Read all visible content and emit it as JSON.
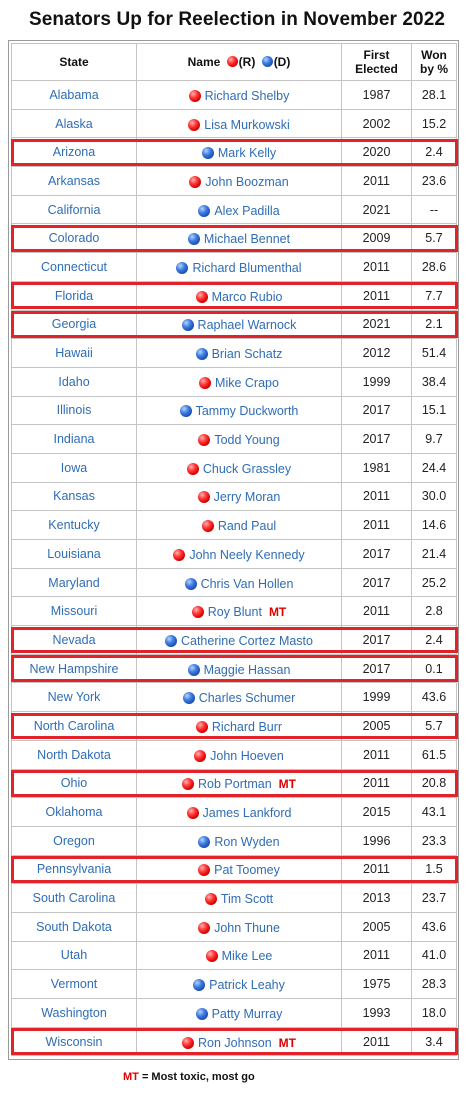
{
  "title": "Senators Up for Reelection in November 2022",
  "header": {
    "state": "State",
    "name": "Name",
    "rep_code": "(R)",
    "dem_code": "(D)",
    "first_line1": "First",
    "first_line2": "Elected",
    "won_line1": "Won",
    "won_line2": "by %"
  },
  "party_colors": {
    "R": "#e00000",
    "D": "#1f5bc4"
  },
  "highlight_color": "#e2232a",
  "rows": [
    {
      "state": "Alabama",
      "name": "Richard Shelby",
      "party": "R",
      "elected": "1987",
      "won": "28.1",
      "mt": "",
      "highlight": false
    },
    {
      "state": "Alaska",
      "name": "Lisa Murkowski",
      "party": "R",
      "elected": "2002",
      "won": "15.2",
      "mt": "",
      "highlight": false
    },
    {
      "state": "Arizona",
      "name": "Mark Kelly",
      "party": "D",
      "elected": "2020",
      "won": "2.4",
      "mt": "",
      "highlight": true
    },
    {
      "state": "Arkansas",
      "name": "John Boozman",
      "party": "R",
      "elected": "2011",
      "won": "23.6",
      "mt": "",
      "highlight": false
    },
    {
      "state": "California",
      "name": "Alex Padilla",
      "party": "D",
      "elected": "2021",
      "won": "--",
      "mt": "",
      "highlight": false
    },
    {
      "state": "Colorado",
      "name": "Michael Bennet",
      "party": "D",
      "elected": "2009",
      "won": "5.7",
      "mt": "",
      "highlight": true
    },
    {
      "state": "Connecticut",
      "name": "Richard Blumenthal",
      "party": "D",
      "elected": "2011",
      "won": "28.6",
      "mt": "",
      "highlight": false
    },
    {
      "state": "Florida",
      "name": "Marco Rubio",
      "party": "R",
      "elected": "2011",
      "won": "7.7",
      "mt": "",
      "highlight": true
    },
    {
      "state": "Georgia",
      "name": "Raphael Warnock",
      "party": "D",
      "elected": "2021",
      "won": "2.1",
      "mt": "",
      "highlight": true
    },
    {
      "state": "Hawaii",
      "name": "Brian Schatz",
      "party": "D",
      "elected": "2012",
      "won": "51.4",
      "mt": "",
      "highlight": false
    },
    {
      "state": "Idaho",
      "name": "Mike Crapo",
      "party": "R",
      "elected": "1999",
      "won": "38.4",
      "mt": "",
      "highlight": false
    },
    {
      "state": "Illinois",
      "name": "Tammy Duckworth",
      "party": "D",
      "elected": "2017",
      "won": "15.1",
      "mt": "",
      "highlight": false
    },
    {
      "state": "Indiana",
      "name": "Todd Young",
      "party": "R",
      "elected": "2017",
      "won": "9.7",
      "mt": "",
      "highlight": false
    },
    {
      "state": "Iowa",
      "name": "Chuck Grassley",
      "party": "R",
      "elected": "1981",
      "won": "24.4",
      "mt": "",
      "highlight": false
    },
    {
      "state": "Kansas",
      "name": "Jerry Moran",
      "party": "R",
      "elected": "2011",
      "won": "30.0",
      "mt": "",
      "highlight": false
    },
    {
      "state": "Kentucky",
      "name": "Rand Paul",
      "party": "R",
      "elected": "2011",
      "won": "14.6",
      "mt": "",
      "highlight": false
    },
    {
      "state": "Louisiana",
      "name": "John Neely Kennedy",
      "party": "R",
      "elected": "2017",
      "won": "21.4",
      "mt": "",
      "highlight": false
    },
    {
      "state": "Maryland",
      "name": "Chris Van Hollen",
      "party": "D",
      "elected": "2017",
      "won": "25.2",
      "mt": "",
      "highlight": false
    },
    {
      "state": "Missouri",
      "name": "Roy Blunt",
      "party": "R",
      "elected": "2011",
      "won": "2.8",
      "mt": "MT",
      "highlight": false
    },
    {
      "state": "Nevada",
      "name": "Catherine Cortez Masto",
      "party": "D",
      "elected": "2017",
      "won": "2.4",
      "mt": "",
      "highlight": true
    },
    {
      "state": "New Hampshire",
      "name": "Maggie Hassan",
      "party": "D",
      "elected": "2017",
      "won": "0.1",
      "mt": "",
      "highlight": true
    },
    {
      "state": "New York",
      "name": "Charles Schumer",
      "party": "D",
      "elected": "1999",
      "won": "43.6",
      "mt": "",
      "highlight": false
    },
    {
      "state": "North Carolina",
      "name": "Richard Burr",
      "party": "R",
      "elected": "2005",
      "won": "5.7",
      "mt": "",
      "highlight": true
    },
    {
      "state": "North Dakota",
      "name": "John Hoeven",
      "party": "R",
      "elected": "2011",
      "won": "61.5",
      "mt": "",
      "highlight": false
    },
    {
      "state": "Ohio",
      "name": "Rob Portman",
      "party": "R",
      "elected": "2011",
      "won": "20.8",
      "mt": "MT",
      "highlight": true
    },
    {
      "state": "Oklahoma",
      "name": "James Lankford",
      "party": "R",
      "elected": "2015",
      "won": "43.1",
      "mt": "",
      "highlight": false
    },
    {
      "state": "Oregon",
      "name": "Ron Wyden",
      "party": "D",
      "elected": "1996",
      "won": "23.3",
      "mt": "",
      "highlight": false
    },
    {
      "state": "Pennsylvania",
      "name": "Pat Toomey",
      "party": "R",
      "elected": "2011",
      "won": "1.5",
      "mt": "",
      "highlight": true
    },
    {
      "state": "South Carolina",
      "name": "Tim Scott",
      "party": "R",
      "elected": "2013",
      "won": "23.7",
      "mt": "",
      "highlight": false
    },
    {
      "state": "South Dakota",
      "name": "John Thune",
      "party": "R",
      "elected": "2005",
      "won": "43.6",
      "mt": "",
      "highlight": false
    },
    {
      "state": "Utah",
      "name": "Mike Lee",
      "party": "R",
      "elected": "2011",
      "won": "41.0",
      "mt": "",
      "highlight": false
    },
    {
      "state": "Vermont",
      "name": "Patrick Leahy",
      "party": "D",
      "elected": "1975",
      "won": "28.3",
      "mt": "",
      "highlight": false
    },
    {
      "state": "Washington",
      "name": "Patty Murray",
      "party": "D",
      "elected": "1993",
      "won": "18.0",
      "mt": "",
      "highlight": false
    },
    {
      "state": "Wisconsin",
      "name": "Ron Johnson",
      "party": "R",
      "elected": "2011",
      "won": "3.4",
      "mt": "MT",
      "highlight": true
    }
  ],
  "footnote": {
    "key": "MT",
    "text": " = Most toxic, most go"
  }
}
